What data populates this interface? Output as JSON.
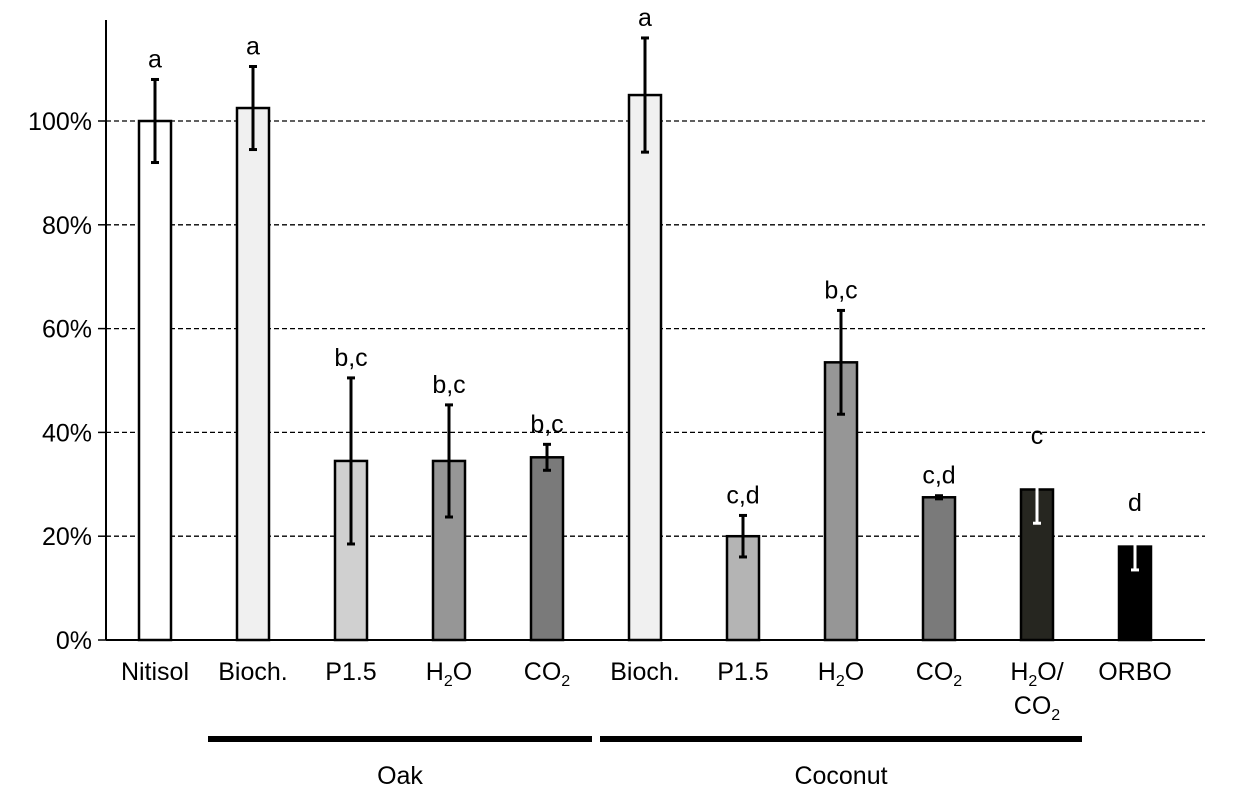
{
  "chart_data": {
    "type": "bar",
    "title": "",
    "xlabel": "",
    "ylabel": "",
    "ylim": [
      0,
      1.0
    ],
    "yticks": [
      "0%",
      "20%",
      "40%",
      "60%",
      "80%",
      "100%"
    ],
    "grid": "horizontal dashed",
    "categories": [
      {
        "label": "Nitisol",
        "sub": "",
        "label2": ""
      },
      {
        "label": "Bioch.",
        "sub": "",
        "label2": ""
      },
      {
        "label": "P1.5",
        "sub": "",
        "label2": ""
      },
      {
        "label": "H",
        "sub": "2",
        "tail": "O",
        "label2": ""
      },
      {
        "label": "CO",
        "sub": "2",
        "tail": "",
        "label2": ""
      },
      {
        "label": "Bioch.",
        "sub": "",
        "label2": ""
      },
      {
        "label": "P1.5",
        "sub": "",
        "label2": ""
      },
      {
        "label": "H",
        "sub": "2",
        "tail": "O",
        "label2": ""
      },
      {
        "label": "CO",
        "sub": "2",
        "tail": "",
        "label2": ""
      },
      {
        "label": "H",
        "sub": "2",
        "tail": "O/",
        "label2": "CO",
        "label2_sub": "2"
      },
      {
        "label": "ORBO",
        "sub": "",
        "label2": ""
      }
    ],
    "values": [
      1.0,
      1.025,
      0.345,
      0.345,
      0.352,
      1.05,
      0.2,
      0.535,
      0.275,
      0.29,
      0.18
    ],
    "errors": [
      0.08,
      0.08,
      0.16,
      0.108,
      0.025,
      0.11,
      0.04,
      0.1,
      0.003,
      0.065,
      0.045
    ],
    "significance": [
      "a",
      "a",
      "b,c",
      "b,c",
      "b,c",
      "a",
      "c,d",
      "b,c",
      "c,d",
      "c",
      "d"
    ],
    "colors": [
      "#ffffff",
      "#f0f0f0",
      "#d0d0d0",
      "#969696",
      "#7a7a7a",
      "#f0f0f0",
      "#b4b4b4",
      "#969696",
      "#7a7a7a",
      "#262620",
      "#000000"
    ],
    "errorbar_colors": [
      "#000000",
      "#000000",
      "#000000",
      "#000000",
      "#000000",
      "#000000",
      "#000000",
      "#000000",
      "#000000",
      "#ffffff",
      "#ffffff"
    ],
    "groups": [
      {
        "label": "Oak",
        "from": 1,
        "to": 4
      },
      {
        "label": "Coconut",
        "from": 5,
        "to": 9
      }
    ]
  }
}
